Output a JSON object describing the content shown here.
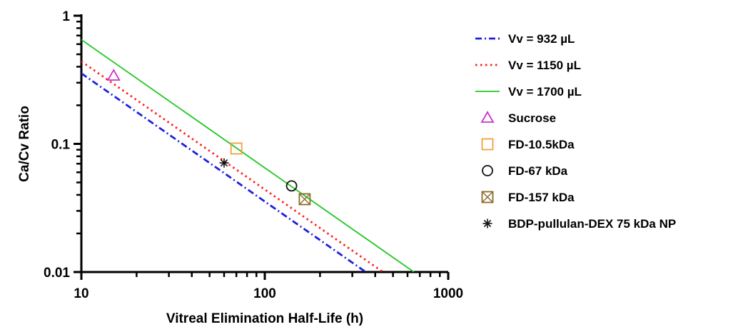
{
  "chart_data": {
    "type": "line",
    "title": "",
    "xlabel": "Vitreal Elimination Half-Life (h)",
    "ylabel": "Ca/Cv Ratio",
    "xscale": "log",
    "yscale": "log",
    "xlim": [
      10,
      1000
    ],
    "ylim": [
      0.01,
      1
    ],
    "x_ticks": [
      "10",
      "100",
      "1000"
    ],
    "y_ticks": [
      "0.01",
      "0.1",
      "1"
    ],
    "grid": false,
    "legend_position": "right",
    "series": [
      {
        "name": "Vv = 932 µL",
        "kind": "line",
        "style": "dash-dot",
        "color": "#1f1fe0",
        "x": [
          10,
          370
        ],
        "y": [
          0.355,
          0.0096
        ]
      },
      {
        "name": "Vv = 1150 µL",
        "kind": "line",
        "style": "dotted",
        "color": "#ff1f1f",
        "x": [
          10,
          450
        ],
        "y": [
          0.44,
          0.0098
        ]
      },
      {
        "name": "Vv = 1700 µL",
        "kind": "line",
        "style": "solid",
        "color": "#22c722",
        "x": [
          10,
          650
        ],
        "y": [
          0.65,
          0.01
        ]
      }
    ],
    "points": [
      {
        "name": "Sucrose",
        "marker": "triangle",
        "color": "#cc33cc",
        "x": 15,
        "y": 0.34
      },
      {
        "name": "FD-10.5kDa",
        "marker": "square",
        "color": "#f0a040",
        "x": 70,
        "y": 0.092
      },
      {
        "name": "FD-67 kDa",
        "marker": "circle",
        "color": "#111111",
        "x": 140,
        "y": 0.047
      },
      {
        "name": "FD-157 kDa",
        "marker": "crossed-square",
        "color": "#8a6a2a",
        "x": 165,
        "y": 0.037
      },
      {
        "name": "BDP-pullulan-DEX 75 kDa NP",
        "marker": "asterisk",
        "color": "#111111",
        "x": 60,
        "y": 0.071
      }
    ]
  }
}
